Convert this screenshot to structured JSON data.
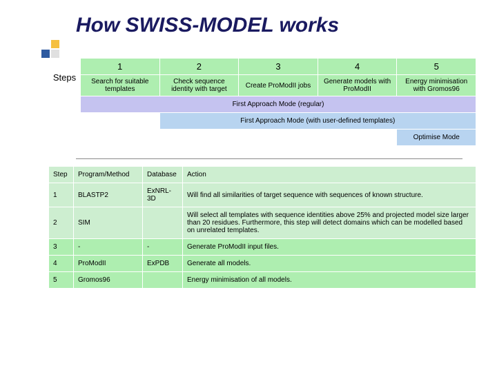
{
  "title": "How SWISS-MODEL works",
  "colors": {
    "green": "#aeeeb0",
    "mint": "#cdeed0",
    "lilac": "#c5c3f0",
    "sky": "#b8d4f0",
    "title_color": "#1a1a60"
  },
  "steps": {
    "row_label": "Steps",
    "numbers": [
      "1",
      "2",
      "3",
      "4",
      "5"
    ],
    "descriptions": [
      "Search for suitable templates",
      "Check sequence identity with target",
      "Create ProModII jobs",
      "Generate models with ProModII",
      "Energy minimisation with Gromos96"
    ]
  },
  "modes": [
    {
      "label": "First Approach Mode (regular)",
      "span_from": 1
    },
    {
      "label": "First Approach Mode (with user-defined templates)",
      "span_from": 2
    },
    {
      "label": "Optimise Mode",
      "span_from": 5
    }
  ],
  "detail": {
    "columns": [
      "Step",
      "Program/Method",
      "Database",
      "Action"
    ],
    "rows": [
      {
        "step": "1",
        "program": "BLASTP2",
        "db": "ExNRL-3D",
        "action": "Will find all similarities of target sequence with sequences of known structure.",
        "shade": "mint"
      },
      {
        "step": "2",
        "program": "SIM",
        "db": "",
        "action": "Will select all templates with sequence identities above 25% and projected model size larger than 20 residues. Furthermore, this step will detect domains which can be modelled based on unrelated templates.",
        "shade": "mint"
      },
      {
        "step": "3",
        "program": "-",
        "db": "-",
        "action": "Generate ProModII input files.",
        "shade": "green"
      },
      {
        "step": "4",
        "program": "ProModII",
        "db": "ExPDB",
        "action": "Generate all models.",
        "shade": "green"
      },
      {
        "step": "5",
        "program": "Gromos96",
        "db": "",
        "action": "Energy minimisation of all models.",
        "shade": "green"
      }
    ]
  }
}
